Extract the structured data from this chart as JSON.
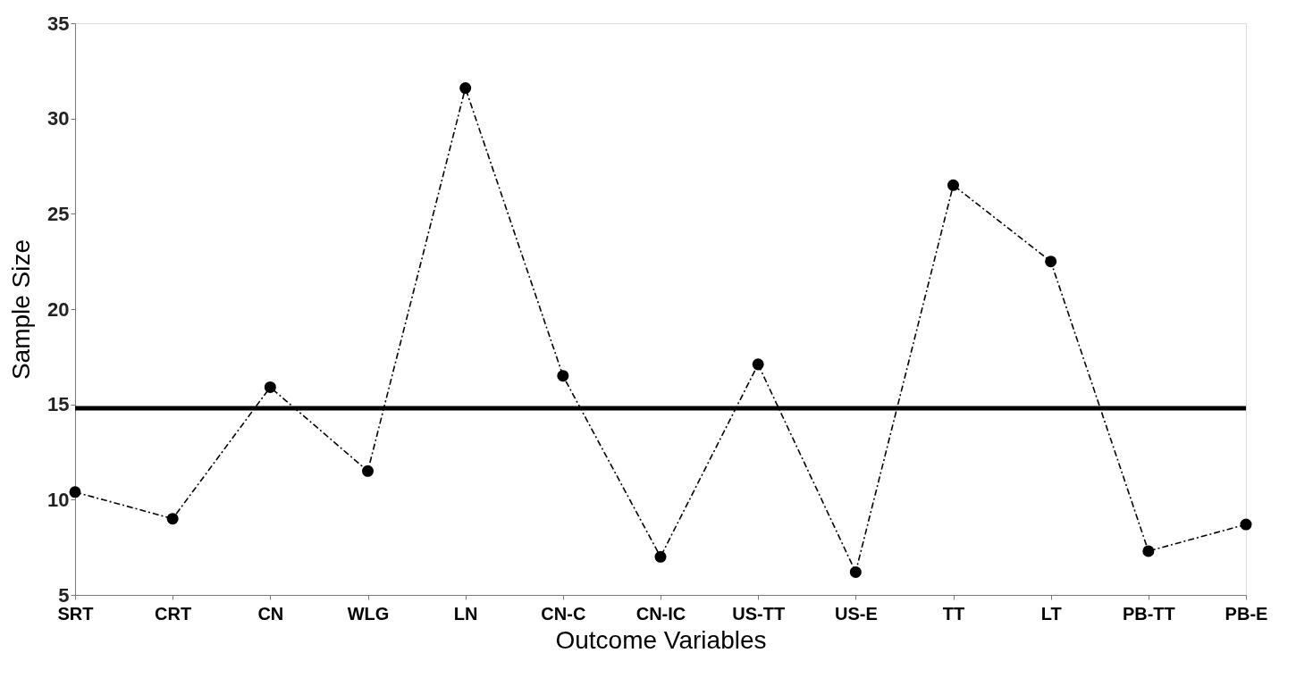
{
  "chart_data": {
    "type": "line",
    "xlabel": "Outcome Variables",
    "ylabel": "Sample Size",
    "categories": [
      "SRT",
      "CRT",
      "CN",
      "WLG",
      "LN",
      "CN-C",
      "CN-IC",
      "US-TT",
      "US-E",
      "TT",
      "LT",
      "PB-TT",
      "PB-E"
    ],
    "series": [
      {
        "color": "#000000",
        "values": [
          10.4,
          9.0,
          15.9,
          11.5,
          31.6,
          16.5,
          7.0,
          17.1,
          6.2,
          26.5,
          22.5,
          7.3,
          8.7
        ]
      }
    ],
    "ylim": [
      5,
      35
    ],
    "yticks": [
      5,
      10,
      15,
      20,
      25,
      30,
      35
    ],
    "ref_lines": [
      {
        "axis": "y",
        "value": 14.8,
        "color": "#000000",
        "line_style": "solid"
      }
    ],
    "marker": "circle",
    "line_style": "dashdot",
    "grid": false
  }
}
